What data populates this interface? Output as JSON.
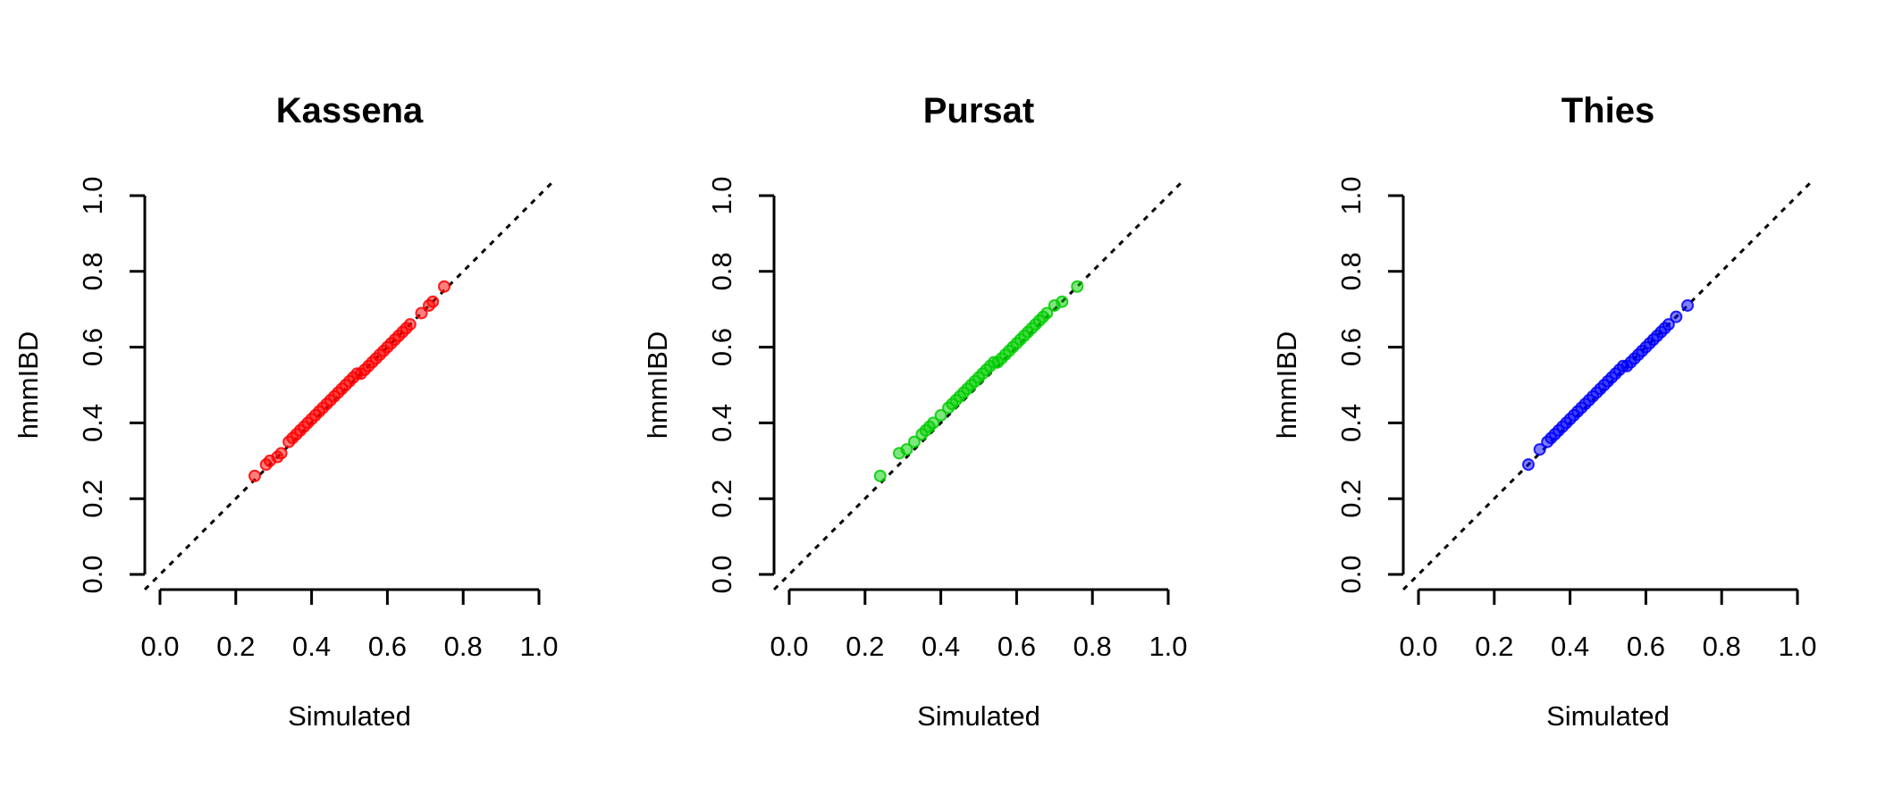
{
  "chart_data": [
    {
      "type": "scatter",
      "title": "Kassena",
      "xlabel": "Simulated",
      "ylabel": "hmmIBD",
      "xlim": [
        0,
        1
      ],
      "ylim": [
        0,
        1
      ],
      "x_ticks": [
        "0.0",
        "0.2",
        "0.4",
        "0.6",
        "0.8",
        "1.0"
      ],
      "y_ticks": [
        "0.0",
        "0.2",
        "0.4",
        "0.6",
        "0.8",
        "1.0"
      ],
      "reference_line": "y = x (dotted)",
      "color": "#ff0000",
      "grid": false,
      "legend": "none",
      "series": [
        {
          "x": [
            0.25,
            0.28,
            0.29,
            0.31,
            0.32,
            0.34,
            0.35,
            0.36,
            0.37,
            0.38,
            0.39,
            0.4,
            0.41,
            0.42,
            0.43,
            0.44,
            0.45,
            0.46,
            0.47,
            0.48,
            0.49,
            0.5,
            0.51,
            0.52,
            0.53,
            0.54,
            0.55,
            0.56,
            0.57,
            0.58,
            0.59,
            0.6,
            0.61,
            0.62,
            0.63,
            0.64,
            0.65,
            0.66,
            0.69,
            0.71,
            0.72,
            0.75
          ],
          "y": [
            0.26,
            0.29,
            0.3,
            0.31,
            0.32,
            0.35,
            0.36,
            0.37,
            0.38,
            0.39,
            0.4,
            0.41,
            0.42,
            0.43,
            0.44,
            0.45,
            0.46,
            0.47,
            0.48,
            0.49,
            0.5,
            0.51,
            0.52,
            0.53,
            0.53,
            0.54,
            0.55,
            0.56,
            0.57,
            0.58,
            0.59,
            0.6,
            0.61,
            0.62,
            0.63,
            0.64,
            0.65,
            0.66,
            0.69,
            0.71,
            0.72,
            0.76
          ]
        }
      ]
    },
    {
      "type": "scatter",
      "title": "Pursat",
      "xlabel": "Simulated",
      "ylabel": "hmmIBD",
      "xlim": [
        0,
        1
      ],
      "ylim": [
        0,
        1
      ],
      "x_ticks": [
        "0.0",
        "0.2",
        "0.4",
        "0.6",
        "0.8",
        "1.0"
      ],
      "y_ticks": [
        "0.0",
        "0.2",
        "0.4",
        "0.6",
        "0.8",
        "1.0"
      ],
      "reference_line": "y = x (dotted)",
      "color": "#00cd00",
      "grid": false,
      "legend": "none",
      "series": [
        {
          "x": [
            0.24,
            0.29,
            0.31,
            0.33,
            0.35,
            0.36,
            0.37,
            0.38,
            0.4,
            0.42,
            0.43,
            0.44,
            0.45,
            0.46,
            0.47,
            0.48,
            0.49,
            0.5,
            0.51,
            0.52,
            0.53,
            0.54,
            0.55,
            0.56,
            0.57,
            0.58,
            0.59,
            0.6,
            0.61,
            0.62,
            0.63,
            0.64,
            0.65,
            0.66,
            0.67,
            0.68,
            0.7,
            0.72,
            0.76
          ],
          "y": [
            0.26,
            0.32,
            0.33,
            0.35,
            0.37,
            0.38,
            0.39,
            0.4,
            0.42,
            0.44,
            0.45,
            0.46,
            0.47,
            0.48,
            0.49,
            0.5,
            0.51,
            0.52,
            0.53,
            0.54,
            0.55,
            0.56,
            0.56,
            0.57,
            0.58,
            0.59,
            0.6,
            0.61,
            0.62,
            0.63,
            0.64,
            0.65,
            0.66,
            0.67,
            0.68,
            0.69,
            0.71,
            0.72,
            0.76
          ]
        }
      ]
    },
    {
      "type": "scatter",
      "title": "Thies",
      "xlabel": "Simulated",
      "ylabel": "hmmIBD",
      "xlim": [
        0,
        1
      ],
      "ylim": [
        0,
        1
      ],
      "x_ticks": [
        "0.0",
        "0.2",
        "0.4",
        "0.6",
        "0.8",
        "1.0"
      ],
      "y_ticks": [
        "0.0",
        "0.2",
        "0.4",
        "0.6",
        "0.8",
        "1.0"
      ],
      "reference_line": "y = x (dotted)",
      "color": "#0000ff",
      "grid": false,
      "legend": "none",
      "series": [
        {
          "x": [
            0.29,
            0.32,
            0.34,
            0.35,
            0.36,
            0.37,
            0.38,
            0.39,
            0.4,
            0.41,
            0.42,
            0.43,
            0.44,
            0.45,
            0.46,
            0.47,
            0.48,
            0.49,
            0.5,
            0.51,
            0.52,
            0.53,
            0.54,
            0.55,
            0.56,
            0.57,
            0.58,
            0.59,
            0.6,
            0.61,
            0.62,
            0.63,
            0.64,
            0.65,
            0.66,
            0.68,
            0.71
          ],
          "y": [
            0.29,
            0.33,
            0.35,
            0.36,
            0.37,
            0.38,
            0.39,
            0.4,
            0.41,
            0.42,
            0.43,
            0.44,
            0.45,
            0.46,
            0.47,
            0.48,
            0.49,
            0.5,
            0.51,
            0.52,
            0.53,
            0.54,
            0.55,
            0.55,
            0.56,
            0.57,
            0.58,
            0.59,
            0.6,
            0.61,
            0.62,
            0.63,
            0.64,
            0.65,
            0.66,
            0.68,
            0.71
          ]
        }
      ]
    }
  ]
}
